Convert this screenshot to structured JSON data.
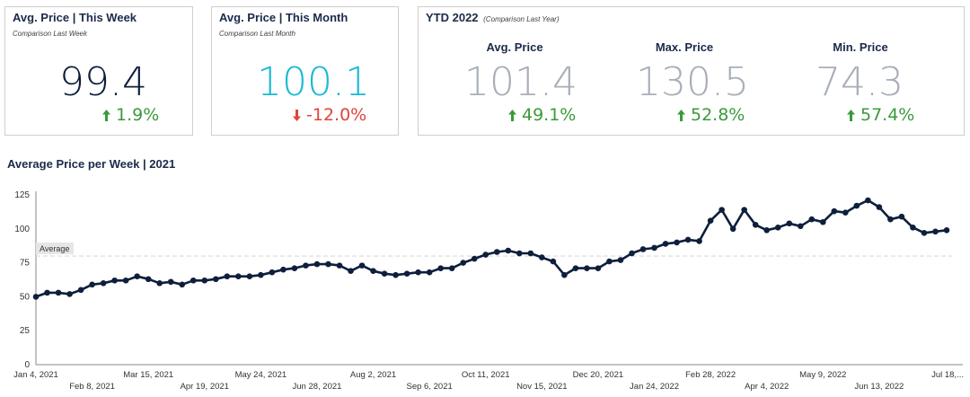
{
  "colors": {
    "navy": "#0d1f3c",
    "cyan": "#1ab8d4",
    "gray_value": "#a7aeb8",
    "green": "#3a9a3a",
    "red": "#e0433b",
    "line": "#0d1f3c",
    "avg_line": "#d9d9d9"
  },
  "cards": {
    "week": {
      "title": "Avg. Price | This Week",
      "subtitle": "Comparison Last Week",
      "value": "99.4",
      "change": "1.9%",
      "direction": "up"
    },
    "month": {
      "title": "Avg. Price | This Month",
      "subtitle": "Comparison Last Month",
      "value": "100.1",
      "change": "-12.0%",
      "direction": "down"
    },
    "ytd": {
      "title": "YTD 2022",
      "subtitle": "(Comparison Last Year)",
      "kpis": [
        {
          "label": "Avg. Price",
          "value": "101.4",
          "change": "49.1%",
          "direction": "up"
        },
        {
          "label": "Max. Price",
          "value": "130.5",
          "change": "52.8%",
          "direction": "up"
        },
        {
          "label": "Min. Price",
          "value": "74.3",
          "change": "57.4%",
          "direction": "up"
        }
      ]
    }
  },
  "chart_title": "Average Price per Week | 2021",
  "chart_data": {
    "type": "line",
    "title": "Average Price per Week | 2021",
    "xlabel": "",
    "ylabel": "",
    "ylim": [
      0,
      125
    ],
    "y_ticks": [
      0,
      25,
      50,
      75,
      100,
      125
    ],
    "grid": false,
    "reference_line": {
      "label": "Average",
      "value": 80
    },
    "x_tick_labels_top": [
      "Jan 4, 2021",
      "Mar 15, 2021",
      "May 24, 2021",
      "Aug 2, 2021",
      "Oct 11, 2021",
      "Dec 20, 2021",
      "Feb 28, 2022",
      "May 9, 2022",
      "Jul 18,..."
    ],
    "x_tick_labels_bottom": [
      "Feb 8, 2021",
      "Apr 19, 2021",
      "Jun 28, 2021",
      "Sep 6, 2021",
      "Nov 15, 2021",
      "Jan 24, 2022",
      "Apr 4, 2022",
      "Jun 13, 2022"
    ],
    "x_start": "2021-01-04",
    "series": [
      {
        "values": [
          50,
          53,
          53,
          52,
          55,
          59,
          60,
          62,
          62,
          65,
          63,
          60,
          61,
          59,
          62,
          62,
          63,
          65,
          65,
          65,
          66,
          68,
          70,
          71,
          73,
          74,
          74,
          73,
          69,
          73,
          69,
          67,
          66,
          67,
          68,
          68,
          71,
          71,
          75,
          78,
          81,
          83,
          84,
          82,
          82,
          79,
          76,
          66,
          71,
          71,
          71,
          76,
          77,
          82,
          85,
          86,
          89,
          90,
          92,
          91,
          106,
          114,
          100,
          114,
          103,
          99,
          101,
          104,
          102,
          107,
          105,
          113,
          112,
          117,
          121,
          116,
          107,
          109,
          101,
          97,
          98,
          99
        ]
      }
    ]
  }
}
